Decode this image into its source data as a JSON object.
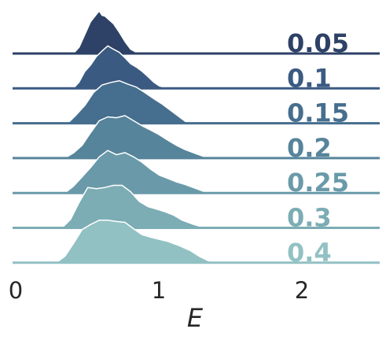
{
  "chart_data": {
    "type": "area",
    "subtype": "ridgeline",
    "xlabel": "E",
    "x_ticks": [
      0,
      1,
      2
    ],
    "x_tick_labels": [
      "0",
      "1",
      "2"
    ],
    "xlim": [
      0,
      2.55
    ],
    "grid": false,
    "legend": "none",
    "row_label_position": "right of each row",
    "series": [
      {
        "name": "0.05",
        "color": "#2e4166",
        "x": [
          0.42,
          0.46,
          0.5,
          0.54,
          0.58,
          0.6,
          0.62,
          0.64,
          0.66,
          0.7,
          0.74,
          0.78,
          0.82,
          0.86,
          0.9
        ],
        "density": [
          0.0,
          0.15,
          0.45,
          0.75,
          0.92,
          1.0,
          0.9,
          0.88,
          0.82,
          0.7,
          0.5,
          0.28,
          0.1,
          0.03,
          0.0
        ]
      },
      {
        "name": "0.1",
        "color": "#3b5a82",
        "x": [
          0.42,
          0.46,
          0.5,
          0.54,
          0.58,
          0.62,
          0.66,
          0.7,
          0.74,
          0.78,
          0.82,
          0.86,
          0.9,
          0.94,
          0.98,
          1.02,
          1.06,
          1.1
        ],
        "density": [
          0.0,
          0.15,
          0.4,
          0.55,
          0.75,
          0.88,
          1.0,
          0.92,
          0.85,
          0.72,
          0.58,
          0.5,
          0.4,
          0.28,
          0.15,
          0.06,
          0.02,
          0.0
        ]
      },
      {
        "name": "0.15",
        "color": "#466e8e",
        "x": [
          0.38,
          0.44,
          0.5,
          0.56,
          0.62,
          0.68,
          0.74,
          0.8,
          0.86,
          0.92,
          0.98,
          1.04,
          1.1,
          1.16,
          1.22
        ],
        "density": [
          0.0,
          0.2,
          0.42,
          0.72,
          0.9,
          0.96,
          1.0,
          0.92,
          0.85,
          0.72,
          0.58,
          0.45,
          0.3,
          0.15,
          0.0
        ]
      },
      {
        "name": "0.2",
        "color": "#56849b",
        "x": [
          0.36,
          0.42,
          0.48,
          0.54,
          0.6,
          0.66,
          0.72,
          0.78,
          0.84,
          0.9,
          0.96,
          1.02,
          1.08,
          1.14,
          1.2,
          1.28,
          1.36
        ],
        "density": [
          0.0,
          0.12,
          0.3,
          0.6,
          0.88,
          0.97,
          0.95,
          1.0,
          0.88,
          0.76,
          0.66,
          0.55,
          0.42,
          0.3,
          0.2,
          0.1,
          0.0
        ]
      },
      {
        "name": "0.25",
        "color": "#6a9aa9",
        "x": [
          0.36,
          0.42,
          0.48,
          0.54,
          0.6,
          0.66,
          0.72,
          0.78,
          0.84,
          0.9,
          0.96,
          1.02,
          1.08,
          1.14,
          1.2,
          1.28,
          1.36
        ],
        "density": [
          0.0,
          0.16,
          0.38,
          0.6,
          0.85,
          1.0,
          0.9,
          0.95,
          0.85,
          0.72,
          0.56,
          0.42,
          0.34,
          0.26,
          0.2,
          0.1,
          0.0
        ]
      },
      {
        "name": "0.3",
        "color": "#7cacb4",
        "x": [
          0.34,
          0.4,
          0.46,
          0.52,
          0.58,
          0.64,
          0.7,
          0.76,
          0.82,
          0.88,
          0.94,
          1.0,
          1.06,
          1.12,
          1.18,
          1.26,
          1.34
        ],
        "density": [
          0.0,
          0.2,
          0.6,
          0.95,
          0.92,
          0.95,
          1.0,
          1.0,
          0.85,
          0.62,
          0.5,
          0.44,
          0.38,
          0.3,
          0.18,
          0.08,
          0.0
        ]
      },
      {
        "name": "0.4",
        "color": "#92c1c3",
        "x": [
          0.3,
          0.36,
          0.42,
          0.48,
          0.54,
          0.6,
          0.66,
          0.72,
          0.78,
          0.84,
          0.9,
          0.96,
          1.02,
          1.08,
          1.16,
          1.24,
          1.3,
          1.36,
          1.42
        ],
        "density": [
          0.0,
          0.15,
          0.45,
          0.78,
          0.9,
          1.0,
          1.0,
          0.97,
          0.95,
          0.8,
          0.66,
          0.6,
          0.55,
          0.5,
          0.4,
          0.28,
          0.15,
          0.05,
          0.0
        ]
      }
    ]
  }
}
